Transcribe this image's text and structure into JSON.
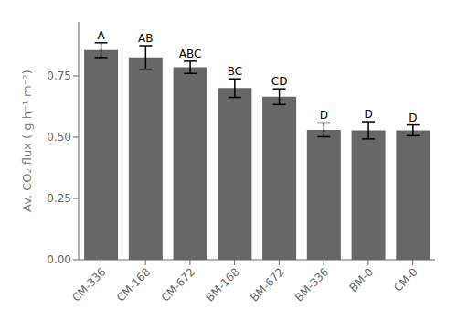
{
  "chart_data": {
    "type": "bar",
    "categories": [
      "CM-336",
      "CM-168",
      "CM-672",
      "BM-168",
      "BM-672",
      "BM-336",
      "BM-0",
      "CM-0"
    ],
    "values": [
      0.855,
      0.825,
      0.785,
      0.7,
      0.665,
      0.53,
      0.528,
      0.528
    ],
    "errors": [
      0.03,
      0.048,
      0.025,
      0.038,
      0.032,
      0.028,
      0.035,
      0.022
    ],
    "annotations": [
      "A",
      "AB",
      "ABC",
      "BC",
      "CD",
      "D",
      "D",
      "D"
    ],
    "color": "#676767",
    "ylabel": "Av. CO₂ flux ( g h⁻¹ m⁻²)",
    "ylim": [
      0.0,
      0.97
    ],
    "yticks": [
      {
        "value": 0.0,
        "label": "0.00"
      },
      {
        "value": 0.25,
        "label": "0.25"
      },
      {
        "value": 0.5,
        "label": "0.50"
      },
      {
        "value": 0.75,
        "label": "0.75"
      }
    ],
    "grid": false
  }
}
